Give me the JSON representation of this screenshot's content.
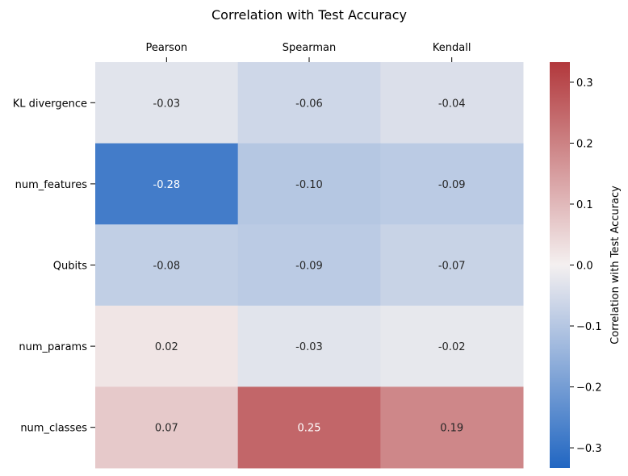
{
  "chart_data": {
    "type": "heatmap",
    "title": "Correlation with Test Accuracy",
    "columns": [
      "Pearson",
      "Spearman",
      "Kendall"
    ],
    "rows": [
      "KL divergence",
      "num_features",
      "Qubits",
      "num_params",
      "num_classes"
    ],
    "values": [
      [
        -0.03,
        -0.06,
        -0.04
      ],
      [
        -0.28,
        -0.1,
        -0.09
      ],
      [
        -0.08,
        -0.09,
        -0.07
      ],
      [
        0.02,
        -0.03,
        -0.02
      ],
      [
        0.07,
        0.25,
        0.19
      ]
    ],
    "labels": [
      [
        "-0.03",
        "-0.06",
        "-0.04"
      ],
      [
        "-0.28",
        "-0.10",
        "-0.09"
      ],
      [
        "-0.08",
        "-0.09",
        "-0.07"
      ],
      [
        "0.02",
        "-0.03",
        "-0.02"
      ],
      [
        "0.07",
        "0.25",
        "0.19"
      ]
    ],
    "colorbar": {
      "label": "Correlation with Test Accuracy",
      "range": [
        -0.333,
        0.333
      ],
      "ticks": [
        0.3,
        0.2,
        0.1,
        0.0,
        -0.1,
        -0.2,
        -0.3
      ],
      "tick_labels": [
        "0.3",
        "0.2",
        "0.1",
        "0.0",
        "−0.1",
        "−0.2",
        "−0.3"
      ]
    },
    "colormap": {
      "low": "#2166c2",
      "mid": "#f4f0f0",
      "high": "#b2383c"
    },
    "x_axis_position": "top"
  }
}
